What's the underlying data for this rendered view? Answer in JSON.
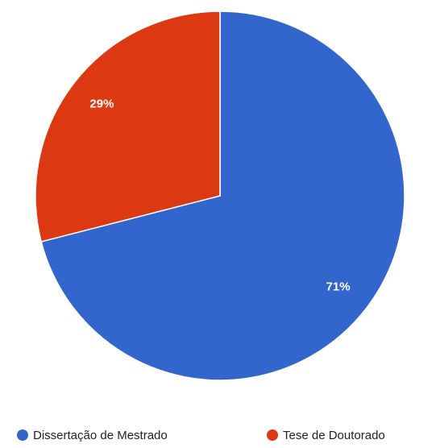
{
  "chart_data": {
    "type": "pie",
    "categories": [
      "Dissertação de Mestrado",
      "Tese de Doutorado"
    ],
    "values": [
      71,
      29
    ],
    "value_labels": [
      "71%",
      "29%"
    ],
    "colors": [
      "#3366cc",
      "#dc3912"
    ]
  }
}
